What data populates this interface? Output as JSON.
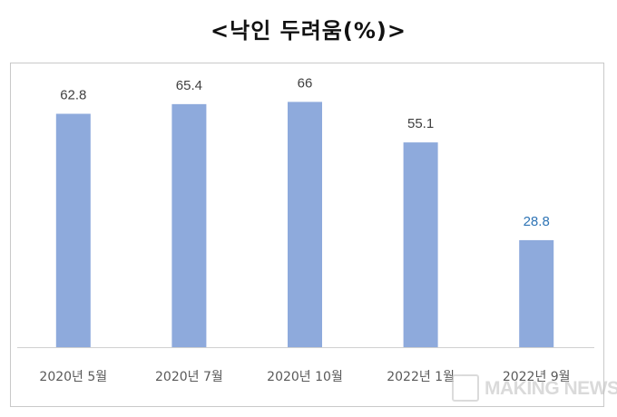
{
  "chart_data": {
    "type": "bar",
    "title": "<낙인 두려움(%)>",
    "categories": [
      "2020년 5월",
      "2020년 7월",
      "2020년 10월",
      "2022년 1월",
      "2022년 9월"
    ],
    "values": [
      62.8,
      65.4,
      66,
      55.1,
      28.8
    ],
    "data_labels": [
      "62.8",
      "65.4",
      "66",
      "55.1",
      "28.8"
    ],
    "highlight_index": 4,
    "ylim": [
      0,
      70
    ],
    "grid": false,
    "colors": {
      "bar": "#8eaadc",
      "label": "#404040",
      "highlight_label": "#2e74b5",
      "axis": "#d0d0d0",
      "tick_label": "#595959"
    }
  },
  "watermark": {
    "text": "MAKING NEWS",
    "icon": "making-news-logo-icon"
  }
}
